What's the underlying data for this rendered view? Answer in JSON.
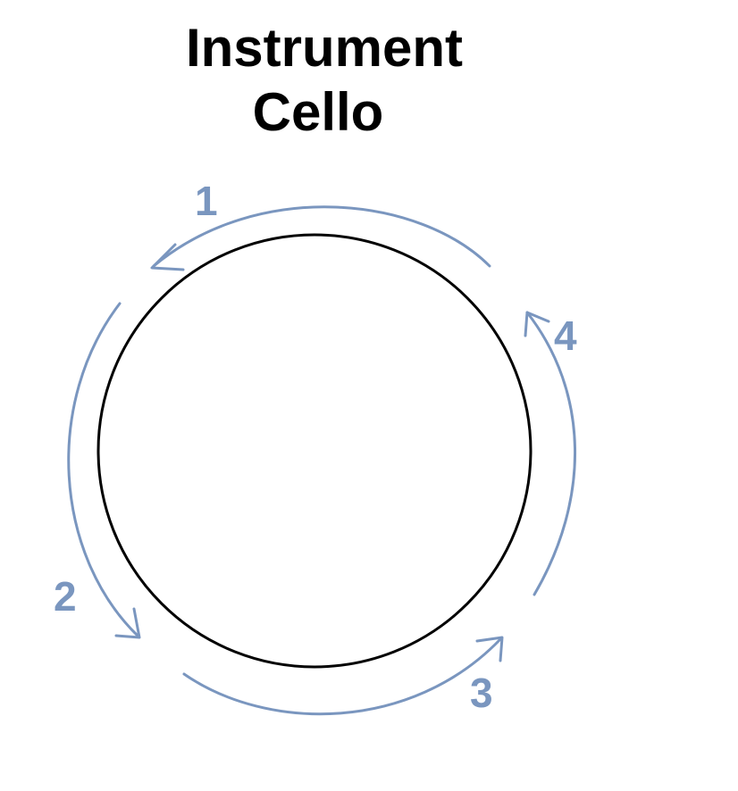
{
  "title": {
    "line1": "Instrument",
    "line2": "Cello"
  },
  "colors": {
    "arrow": "#7a96bf",
    "circle": "#000000",
    "text": "#000000"
  },
  "steps": [
    {
      "label": "1",
      "direction": "counter-clockwise",
      "position": "top"
    },
    {
      "label": "2",
      "direction": "counter-clockwise",
      "position": "left"
    },
    {
      "label": "3",
      "direction": "counter-clockwise",
      "position": "bottom"
    },
    {
      "label": "4",
      "direction": "counter-clockwise",
      "position": "right"
    }
  ]
}
